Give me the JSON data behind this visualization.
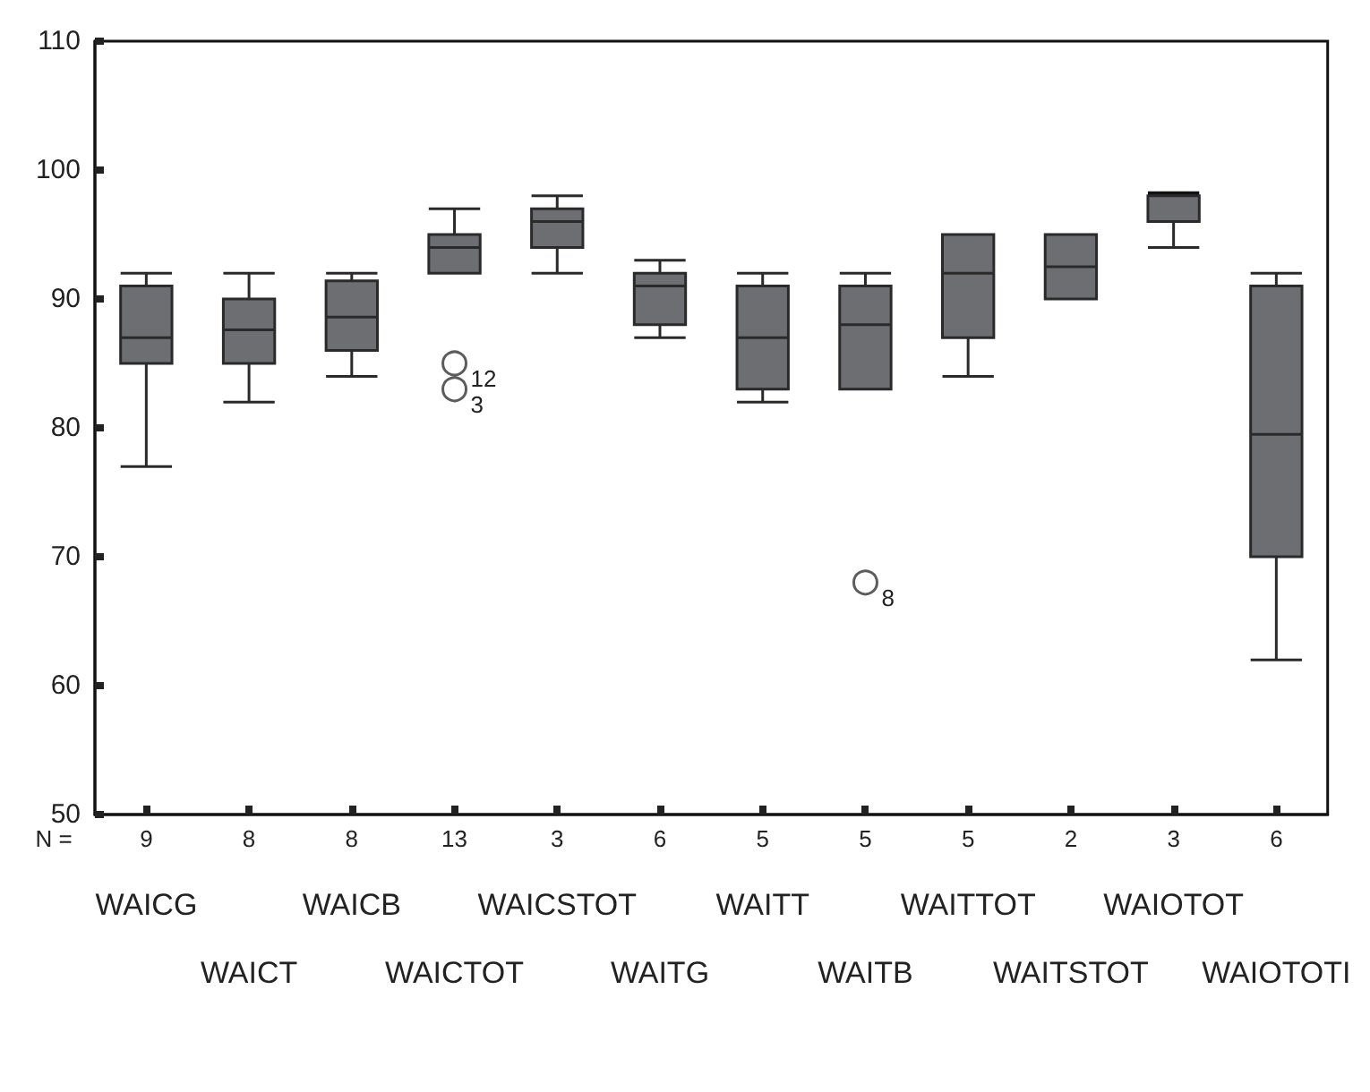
{
  "chart_data": {
    "type": "box",
    "categories": [
      "WAICG",
      "WAICT",
      "WAICB",
      "WAICTOT",
      "WAICSTOT",
      "WAITG",
      "WAITT",
      "WAITB",
      "WAITTOT",
      "WAITSTOT",
      "WAIOTOT",
      "WAIOTOTI"
    ],
    "boxes": [
      {
        "low": 77,
        "q1": 85,
        "median": 87,
        "q3": 91,
        "high": 92
      },
      {
        "low": 82,
        "q1": 85,
        "median": 87.6,
        "q3": 90,
        "high": 92
      },
      {
        "low": 84,
        "q1": 86,
        "median": 88.6,
        "q3": 91.4,
        "high": 92
      },
      {
        "low": 92,
        "q1": 92,
        "median": 94,
        "q3": 95,
        "high": 97,
        "outliers": [
          83,
          85
        ]
      },
      {
        "low": 92,
        "q1": 94,
        "median": 96,
        "q3": 97,
        "high": 98
      },
      {
        "low": 87,
        "q1": 88,
        "median": 91,
        "q3": 92,
        "high": 93
      },
      {
        "low": 82,
        "q1": 83,
        "median": 87,
        "q3": 91,
        "high": 92
      },
      {
        "low": 83,
        "q1": 83,
        "median": 88,
        "q3": 91,
        "high": 92,
        "outliers": [
          68
        ]
      },
      {
        "low": 84,
        "q1": 87,
        "median": 92,
        "q3": 95,
        "high": 95
      },
      {
        "low": 90,
        "q1": 90,
        "median": 92.5,
        "q3": 95,
        "high": 95
      },
      {
        "low": 94,
        "q1": 96,
        "median": 98,
        "q3": 98,
        "high": 98
      },
      {
        "low": 62,
        "q1": 70,
        "median": 79.5,
        "q3": 91,
        "high": 92
      }
    ],
    "color": "#6d6e72",
    "ylim": [
      50,
      110
    ],
    "yticks": [
      50,
      60,
      70,
      80,
      90,
      100,
      110
    ],
    "grid": false,
    "legend": false,
    "annotations": [
      "N =",
      "9",
      "8",
      "8",
      "13",
      "3",
      "6",
      "5",
      "5",
      "5",
      "2",
      "3",
      "6",
      "3",
      "12",
      "8"
    ]
  }
}
